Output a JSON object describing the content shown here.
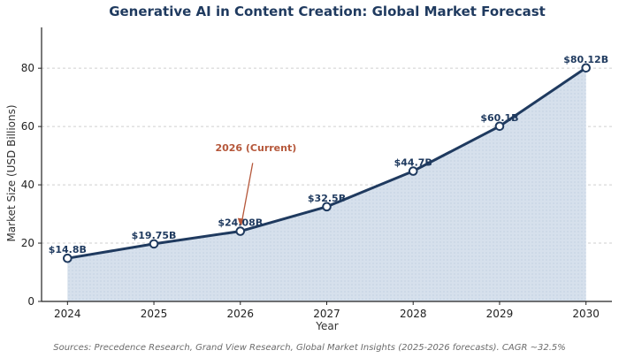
{
  "chart_data": {
    "type": "line",
    "title": "Generative AI in Content Creation: Global Market Forecast",
    "xlabel": "Year",
    "ylabel": "Market Size (USD Billions)",
    "x": [
      2024,
      2025,
      2026,
      2027,
      2028,
      2029,
      2030
    ],
    "series": [
      {
        "values": [
          14.8,
          19.75,
          24.08,
          32.5,
          44.7,
          60.1,
          80.12
        ],
        "labels": [
          "$14.8B",
          "$19.75B",
          "$24.08B",
          "$32.5B",
          "$44.7B",
          "$60.1B",
          "$80.12B"
        ]
      }
    ],
    "ylim": [
      0,
      94
    ],
    "xlim": [
      2023.7,
      2030.3
    ],
    "yticks": [
      0,
      20,
      40,
      60,
      80
    ],
    "xticks": [
      2024,
      2025,
      2026,
      2027,
      2028,
      2029,
      2030
    ],
    "area_fill": true,
    "grid": "horizontal dashed",
    "annotation": {
      "text": "2026 (Current)",
      "x": 2026,
      "y": 24.08
    },
    "source_note": "Sources: Precedence Research, Grand View Research, Global Market Insights (2025-2026 forecasts). CAGR ~32.5%",
    "colors": {
      "line": "#1f3a5f",
      "fill": "#d6e0ec",
      "annotation": "#b5573a",
      "title": "#1f3a5f"
    }
  }
}
